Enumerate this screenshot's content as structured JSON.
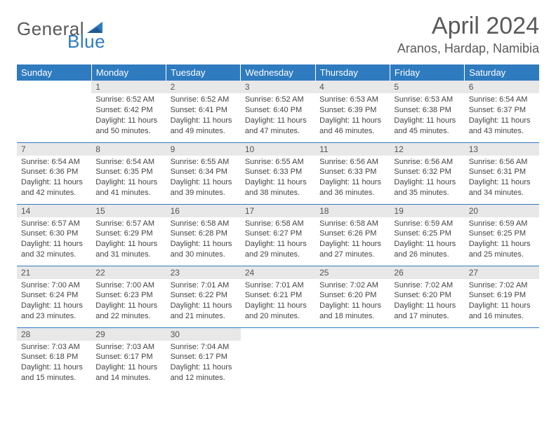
{
  "logo": {
    "general": "General",
    "blue": "Blue"
  },
  "title": "April 2024",
  "location": "Aranos, Hardap, Namibia",
  "colors": {
    "header_bg": "#2f7bbf",
    "header_text": "#ffffff",
    "daynum_bg": "#e8e8e8",
    "text": "#444444",
    "title_color": "#58595b",
    "rule_color": "#2f7bbf"
  },
  "fonts": {
    "title_size": 34,
    "location_size": 18,
    "dayhead_size": 13,
    "body_size": 11
  },
  "day_headers": [
    "Sunday",
    "Monday",
    "Tuesday",
    "Wednesday",
    "Thursday",
    "Friday",
    "Saturday"
  ],
  "weeks": [
    [
      null,
      {
        "n": "1",
        "sr": "Sunrise: 6:52 AM",
        "ss": "Sunset: 6:42 PM",
        "d1": "Daylight: 11 hours",
        "d2": "and 50 minutes."
      },
      {
        "n": "2",
        "sr": "Sunrise: 6:52 AM",
        "ss": "Sunset: 6:41 PM",
        "d1": "Daylight: 11 hours",
        "d2": "and 49 minutes."
      },
      {
        "n": "3",
        "sr": "Sunrise: 6:52 AM",
        "ss": "Sunset: 6:40 PM",
        "d1": "Daylight: 11 hours",
        "d2": "and 47 minutes."
      },
      {
        "n": "4",
        "sr": "Sunrise: 6:53 AM",
        "ss": "Sunset: 6:39 PM",
        "d1": "Daylight: 11 hours",
        "d2": "and 46 minutes."
      },
      {
        "n": "5",
        "sr": "Sunrise: 6:53 AM",
        "ss": "Sunset: 6:38 PM",
        "d1": "Daylight: 11 hours",
        "d2": "and 45 minutes."
      },
      {
        "n": "6",
        "sr": "Sunrise: 6:54 AM",
        "ss": "Sunset: 6:37 PM",
        "d1": "Daylight: 11 hours",
        "d2": "and 43 minutes."
      }
    ],
    [
      {
        "n": "7",
        "sr": "Sunrise: 6:54 AM",
        "ss": "Sunset: 6:36 PM",
        "d1": "Daylight: 11 hours",
        "d2": "and 42 minutes."
      },
      {
        "n": "8",
        "sr": "Sunrise: 6:54 AM",
        "ss": "Sunset: 6:35 PM",
        "d1": "Daylight: 11 hours",
        "d2": "and 41 minutes."
      },
      {
        "n": "9",
        "sr": "Sunrise: 6:55 AM",
        "ss": "Sunset: 6:34 PM",
        "d1": "Daylight: 11 hours",
        "d2": "and 39 minutes."
      },
      {
        "n": "10",
        "sr": "Sunrise: 6:55 AM",
        "ss": "Sunset: 6:33 PM",
        "d1": "Daylight: 11 hours",
        "d2": "and 38 minutes."
      },
      {
        "n": "11",
        "sr": "Sunrise: 6:56 AM",
        "ss": "Sunset: 6:33 PM",
        "d1": "Daylight: 11 hours",
        "d2": "and 36 minutes."
      },
      {
        "n": "12",
        "sr": "Sunrise: 6:56 AM",
        "ss": "Sunset: 6:32 PM",
        "d1": "Daylight: 11 hours",
        "d2": "and 35 minutes."
      },
      {
        "n": "13",
        "sr": "Sunrise: 6:56 AM",
        "ss": "Sunset: 6:31 PM",
        "d1": "Daylight: 11 hours",
        "d2": "and 34 minutes."
      }
    ],
    [
      {
        "n": "14",
        "sr": "Sunrise: 6:57 AM",
        "ss": "Sunset: 6:30 PM",
        "d1": "Daylight: 11 hours",
        "d2": "and 32 minutes."
      },
      {
        "n": "15",
        "sr": "Sunrise: 6:57 AM",
        "ss": "Sunset: 6:29 PM",
        "d1": "Daylight: 11 hours",
        "d2": "and 31 minutes."
      },
      {
        "n": "16",
        "sr": "Sunrise: 6:58 AM",
        "ss": "Sunset: 6:28 PM",
        "d1": "Daylight: 11 hours",
        "d2": "and 30 minutes."
      },
      {
        "n": "17",
        "sr": "Sunrise: 6:58 AM",
        "ss": "Sunset: 6:27 PM",
        "d1": "Daylight: 11 hours",
        "d2": "and 29 minutes."
      },
      {
        "n": "18",
        "sr": "Sunrise: 6:58 AM",
        "ss": "Sunset: 6:26 PM",
        "d1": "Daylight: 11 hours",
        "d2": "and 27 minutes."
      },
      {
        "n": "19",
        "sr": "Sunrise: 6:59 AM",
        "ss": "Sunset: 6:25 PM",
        "d1": "Daylight: 11 hours",
        "d2": "and 26 minutes."
      },
      {
        "n": "20",
        "sr": "Sunrise: 6:59 AM",
        "ss": "Sunset: 6:25 PM",
        "d1": "Daylight: 11 hours",
        "d2": "and 25 minutes."
      }
    ],
    [
      {
        "n": "21",
        "sr": "Sunrise: 7:00 AM",
        "ss": "Sunset: 6:24 PM",
        "d1": "Daylight: 11 hours",
        "d2": "and 23 minutes."
      },
      {
        "n": "22",
        "sr": "Sunrise: 7:00 AM",
        "ss": "Sunset: 6:23 PM",
        "d1": "Daylight: 11 hours",
        "d2": "and 22 minutes."
      },
      {
        "n": "23",
        "sr": "Sunrise: 7:01 AM",
        "ss": "Sunset: 6:22 PM",
        "d1": "Daylight: 11 hours",
        "d2": "and 21 minutes."
      },
      {
        "n": "24",
        "sr": "Sunrise: 7:01 AM",
        "ss": "Sunset: 6:21 PM",
        "d1": "Daylight: 11 hours",
        "d2": "and 20 minutes."
      },
      {
        "n": "25",
        "sr": "Sunrise: 7:02 AM",
        "ss": "Sunset: 6:20 PM",
        "d1": "Daylight: 11 hours",
        "d2": "and 18 minutes."
      },
      {
        "n": "26",
        "sr": "Sunrise: 7:02 AM",
        "ss": "Sunset: 6:20 PM",
        "d1": "Daylight: 11 hours",
        "d2": "and 17 minutes."
      },
      {
        "n": "27",
        "sr": "Sunrise: 7:02 AM",
        "ss": "Sunset: 6:19 PM",
        "d1": "Daylight: 11 hours",
        "d2": "and 16 minutes."
      }
    ],
    [
      {
        "n": "28",
        "sr": "Sunrise: 7:03 AM",
        "ss": "Sunset: 6:18 PM",
        "d1": "Daylight: 11 hours",
        "d2": "and 15 minutes."
      },
      {
        "n": "29",
        "sr": "Sunrise: 7:03 AM",
        "ss": "Sunset: 6:17 PM",
        "d1": "Daylight: 11 hours",
        "d2": "and 14 minutes."
      },
      {
        "n": "30",
        "sr": "Sunrise: 7:04 AM",
        "ss": "Sunset: 6:17 PM",
        "d1": "Daylight: 11 hours",
        "d2": "and 12 minutes."
      },
      null,
      null,
      null,
      null
    ]
  ]
}
